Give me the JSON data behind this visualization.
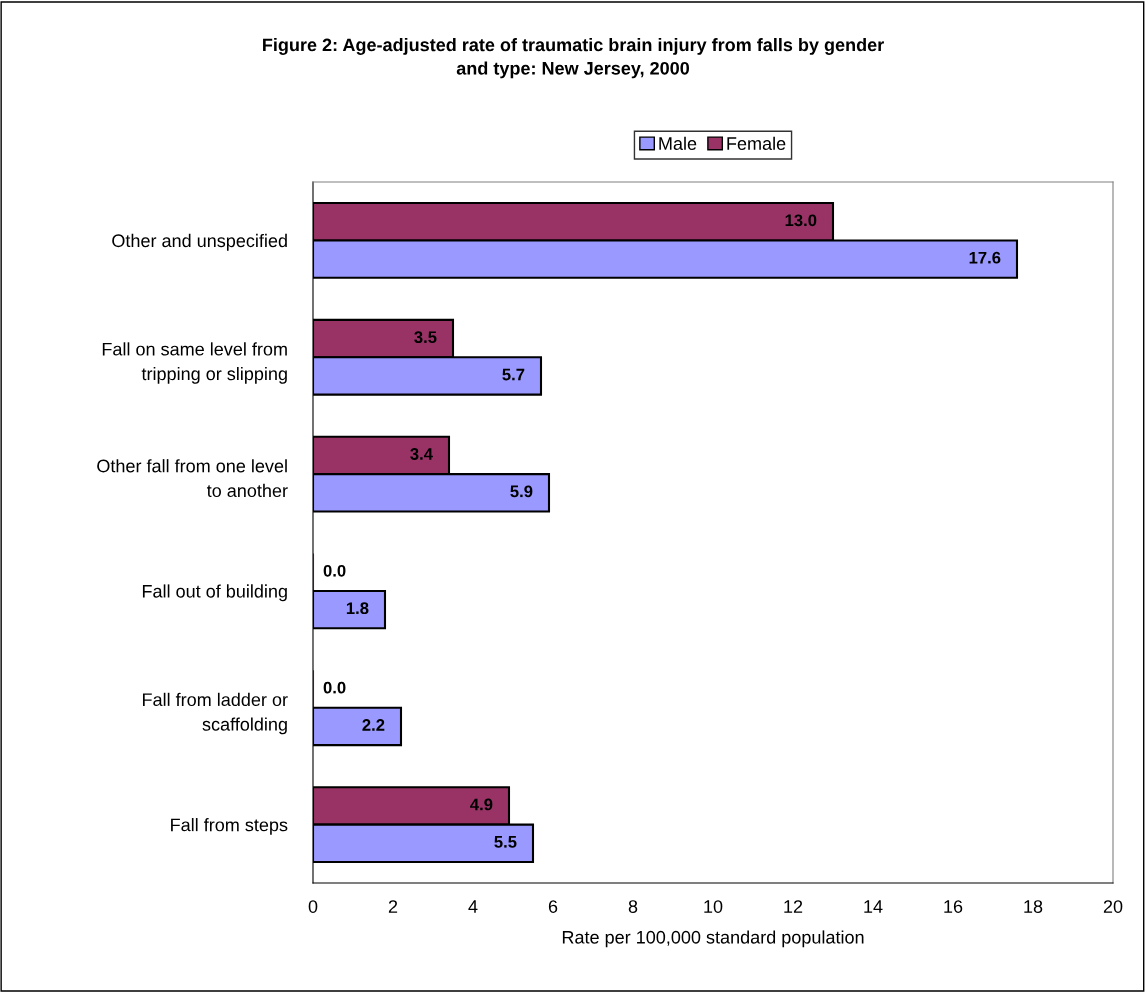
{
  "chart_data": {
    "type": "bar",
    "orientation": "horizontal",
    "title": "Figure 2: Age-adjusted rate of traumatic brain injury from falls by gender\nand type: New Jersey, 2000",
    "xlabel": "Rate per 100,000 standard population",
    "categories": [
      "Other and unspecified",
      "Fall on same level from\ntripping or slipping",
      "Other fall from one level\nto another",
      "Fall out of building",
      "Fall from ladder or\nscaffolding",
      "Fall from steps"
    ],
    "series": [
      {
        "name": "Female",
        "color": "#993366",
        "values": [
          13.0,
          3.5,
          3.4,
          0.0,
          0.0,
          4.9
        ],
        "value_labels": [
          "13.0",
          "3.5",
          "3.4",
          "0.0",
          "0.0",
          "4.9"
        ]
      },
      {
        "name": "Male",
        "color": "#9999ff",
        "values": [
          17.6,
          5.7,
          5.9,
          1.8,
          2.2,
          5.5
        ],
        "value_labels": [
          "17.6",
          "5.7",
          "5.9",
          "1.8",
          "2.2",
          "5.5"
        ]
      }
    ],
    "xlim": [
      0,
      20
    ],
    "xticks": [
      0,
      2,
      4,
      6,
      8,
      10,
      12,
      14,
      16,
      18,
      20
    ],
    "grid": false,
    "legend": "top"
  }
}
